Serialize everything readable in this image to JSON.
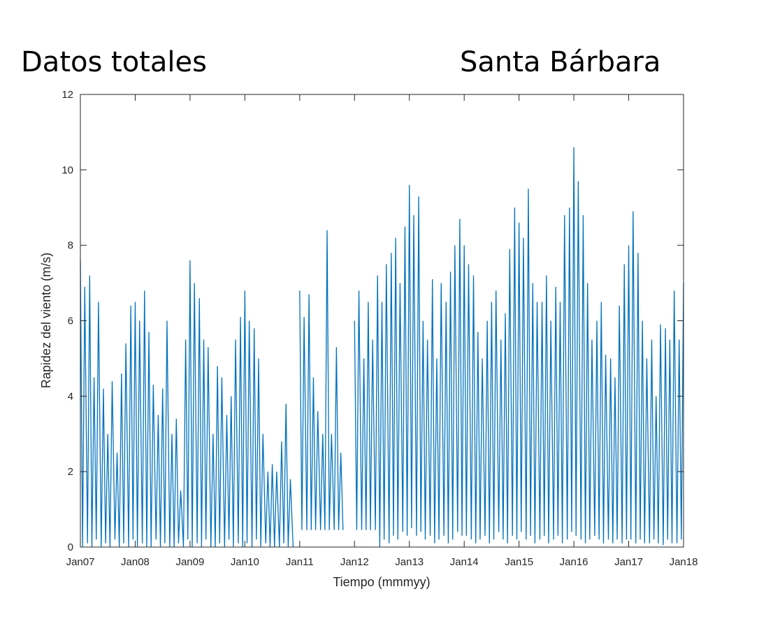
{
  "chart_data": {
    "type": "line",
    "title": "Datos totales",
    "subtitle": "Santa Bárbara",
    "xlabel": "Tiempo (mmmyy)",
    "ylabel": "Rapidez del viento (m/s)",
    "color": "#0072bd",
    "xlim": [
      2007,
      2018
    ],
    "ylim": [
      0,
      12
    ],
    "xticks": [
      {
        "value": 2007,
        "label": "Jan07"
      },
      {
        "value": 2008,
        "label": "Jan08"
      },
      {
        "value": 2009,
        "label": "Jan09"
      },
      {
        "value": 2010,
        "label": "Jan10"
      },
      {
        "value": 2011,
        "label": "Jan11"
      },
      {
        "value": 2012,
        "label": "Jan12"
      },
      {
        "value": 2013,
        "label": "Jan13"
      },
      {
        "value": 2014,
        "label": "Jan14"
      },
      {
        "value": 2015,
        "label": "Jan15"
      },
      {
        "value": 2016,
        "label": "Jan16"
      },
      {
        "value": 2017,
        "label": "Jan17"
      },
      {
        "value": 2018,
        "label": "Jan18"
      }
    ],
    "yticks": [
      0,
      2,
      4,
      6,
      8,
      10,
      12
    ],
    "x": [
      2007.0,
      2007.04,
      2007.08,
      2007.13,
      2007.17,
      2007.21,
      2007.25,
      2007.29,
      2007.33,
      2007.38,
      2007.42,
      2007.46,
      2007.5,
      2007.54,
      2007.58,
      2007.63,
      2007.67,
      2007.71,
      2007.75,
      2007.79,
      2007.83,
      2007.88,
      2007.92,
      2007.96,
      2008.0,
      2008.04,
      2008.08,
      2008.13,
      2008.17,
      2008.21,
      2008.25,
      2008.29,
      2008.33,
      2008.38,
      2008.42,
      2008.46,
      2008.5,
      2008.54,
      2008.58,
      2008.63,
      2008.67,
      2008.71,
      2008.75,
      2008.79,
      2008.83,
      2008.88,
      2008.92,
      2008.96,
      2009.0,
      2009.04,
      2009.08,
      2009.13,
      2009.17,
      2009.21,
      2009.25,
      2009.29,
      2009.33,
      2009.38,
      2009.42,
      2009.46,
      2009.5,
      2009.54,
      2009.58,
      2009.63,
      2009.67,
      2009.71,
      2009.75,
      2009.79,
      2009.83,
      2009.88,
      2009.92,
      2009.96,
      2010.0,
      2010.04,
      2010.08,
      2010.13,
      2010.17,
      2010.21,
      2010.25,
      2010.29,
      2010.33,
      2010.38,
      2010.42,
      2010.46,
      2010.5,
      2010.54,
      2010.58,
      2010.63,
      2010.67,
      2010.71,
      2010.75,
      2010.79,
      2010.83,
      2010.88,
      2010.92,
      2010.96,
      2011.0,
      2011.04,
      2011.08,
      2011.13,
      2011.17,
      2011.21,
      2011.25,
      2011.29,
      2011.33,
      2011.38,
      2011.42,
      2011.46,
      2011.5,
      2011.54,
      2011.58,
      2011.63,
      2011.67,
      2011.71,
      2011.75,
      2011.79,
      2011.83,
      2011.88,
      2011.92,
      2011.96,
      2012.0,
      2012.04,
      2012.08,
      2012.13,
      2012.17,
      2012.21,
      2012.25,
      2012.29,
      2012.33,
      2012.38,
      2012.42,
      2012.46,
      2012.5,
      2012.54,
      2012.58,
      2012.63,
      2012.67,
      2012.71,
      2012.75,
      2012.79,
      2012.83,
      2012.88,
      2012.92,
      2012.96,
      2013.0,
      2013.04,
      2013.08,
      2013.13,
      2013.17,
      2013.21,
      2013.25,
      2013.29,
      2013.33,
      2013.38,
      2013.42,
      2013.46,
      2013.5,
      2013.54,
      2013.58,
      2013.63,
      2013.67,
      2013.71,
      2013.75,
      2013.79,
      2013.83,
      2013.88,
      2013.92,
      2013.96,
      2014.0,
      2014.04,
      2014.08,
      2014.13,
      2014.17,
      2014.21,
      2014.25,
      2014.29,
      2014.33,
      2014.38,
      2014.42,
      2014.46,
      2014.5,
      2014.54,
      2014.58,
      2014.63,
      2014.67,
      2014.71,
      2014.75,
      2014.79,
      2014.83,
      2014.88,
      2014.92,
      2014.96,
      2015.0,
      2015.04,
      2015.08,
      2015.13,
      2015.17,
      2015.21,
      2015.25,
      2015.29,
      2015.33,
      2015.38,
      2015.42,
      2015.46,
      2015.5,
      2015.54,
      2015.58,
      2015.63,
      2015.67,
      2015.71,
      2015.75,
      2015.79,
      2015.83,
      2015.88,
      2015.92,
      2015.96,
      2016.0,
      2016.04,
      2016.08,
      2016.13,
      2016.17,
      2016.21,
      2016.25,
      2016.29,
      2016.33,
      2016.38,
      2016.42,
      2016.46,
      2016.5,
      2016.54,
      2016.58,
      2016.63,
      2016.67,
      2016.71,
      2016.75,
      2016.79,
      2016.83,
      2016.88,
      2016.92,
      2016.96,
      2017.0,
      2017.04,
      2017.08,
      2017.13,
      2017.17,
      2017.21,
      2017.25,
      2017.29,
      2017.33,
      2017.38,
      2017.42,
      2017.46,
      2017.5,
      2017.54,
      2017.58,
      2017.63,
      2017.67,
      2017.71,
      2017.75,
      2017.79,
      2017.83,
      2017.88,
      2017.92,
      2017.96,
      2018.0
    ],
    "values": [
      7.6,
      0,
      6.9,
      0.1,
      7.2,
      0,
      4.5,
      0.2,
      6.5,
      0,
      4.2,
      0.1,
      3.0,
      0,
      4.4,
      0.2,
      2.5,
      0,
      4.6,
      0.1,
      5.4,
      0,
      6.4,
      0.2,
      6.5,
      0,
      6.0,
      0.1,
      6.8,
      0,
      5.7,
      0,
      4.3,
      0.2,
      3.5,
      0,
      4.2,
      0.1,
      6.0,
      0,
      3.0,
      0,
      3.4,
      0.1,
      1.5,
      0,
      5.5,
      0.2,
      7.6,
      0,
      7.0,
      0.1,
      6.6,
      0,
      5.5,
      0.2,
      5.3,
      0,
      3.0,
      0,
      4.8,
      0.1,
      4.5,
      0,
      3.5,
      0.2,
      4.0,
      0,
      5.5,
      0.1,
      6.1,
      0,
      6.8,
      0.1,
      6.0,
      0,
      5.8,
      0.2,
      5.0,
      0,
      3.0,
      0.1,
      2.0,
      0,
      2.2,
      0,
      2.0,
      0,
      2.8,
      0.1,
      3.8,
      0,
      1.8,
      0,
      null,
      null,
      6.8,
      0.45,
      6.1,
      0.45,
      6.7,
      0.45,
      4.5,
      0.45,
      3.6,
      0.45,
      3.0,
      0.45,
      8.4,
      0.45,
      3.0,
      0.45,
      5.3,
      0.45,
      2.5,
      0.45,
      null,
      null,
      null,
      null,
      6.0,
      0.45,
      6.8,
      0.45,
      5.0,
      0.45,
      6.5,
      0.45,
      5.5,
      0.45,
      7.2,
      0,
      6.5,
      0.2,
      7.5,
      0.1,
      7.8,
      0.3,
      8.2,
      0.2,
      7.0,
      0.4,
      8.5,
      0.3,
      9.6,
      0.5,
      8.8,
      0.3,
      9.3,
      0.4,
      6.0,
      0.2,
      5.5,
      0.3,
      7.1,
      0.1,
      5.0,
      0.2,
      7.0,
      0.3,
      6.5,
      0.1,
      7.3,
      0.2,
      8.0,
      0.4,
      8.7,
      0.3,
      8.0,
      0.3,
      7.5,
      0.2,
      7.2,
      0.1,
      5.7,
      0.2,
      5.0,
      0.3,
      6.0,
      0.1,
      6.5,
      0.2,
      6.8,
      0.4,
      5.5,
      0.2,
      6.2,
      0.1,
      7.9,
      0.3,
      9.0,
      0.2,
      8.6,
      0.4,
      8.2,
      0.2,
      9.5,
      0.3,
      7.0,
      0.1,
      6.5,
      0.2,
      6.5,
      0.3,
      7.2,
      0.1,
      6.0,
      0.2,
      6.9,
      0.3,
      6.5,
      0.1,
      8.8,
      0.2,
      9.0,
      0.4,
      10.6,
      0.3,
      9.7,
      0.2,
      8.8,
      0.1,
      7.0,
      0.2,
      5.5,
      0.3,
      6.0,
      0.2,
      6.5,
      0.1,
      5.1,
      0.2,
      5.0,
      0.1,
      4.5,
      0.2,
      6.4,
      0.1,
      7.5,
      0.2,
      8.0,
      0.2,
      8.9,
      0.1,
      7.8,
      0.2,
      6.0,
      0.1,
      5.0,
      0.1,
      5.5,
      0.2,
      4.0,
      0.1,
      5.9,
      0.05,
      5.8,
      0.2,
      5.5,
      0.1,
      6.8,
      0.1,
      5.5,
      0.2,
      7.0
    ]
  }
}
